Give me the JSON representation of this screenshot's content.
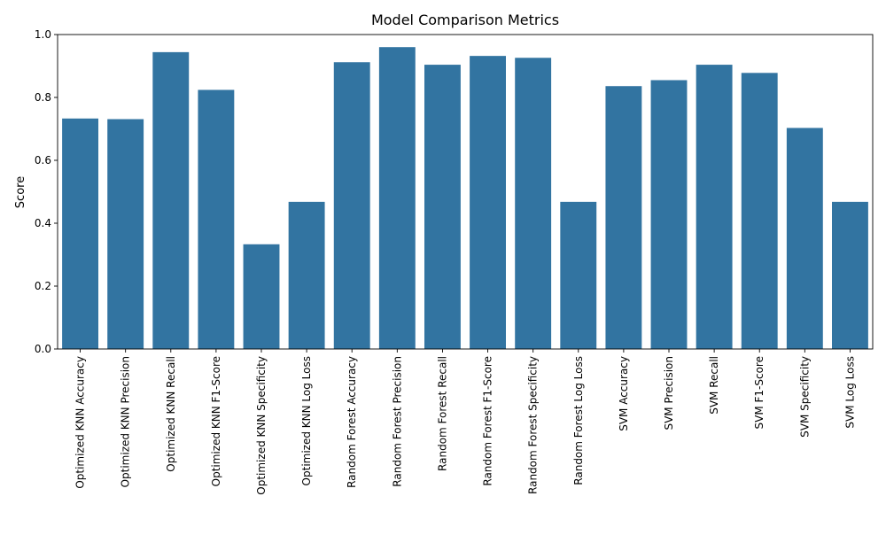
{
  "chart_data": {
    "type": "bar",
    "title": "Model Comparison Metrics",
    "xlabel": "",
    "ylabel": "Score",
    "ylim": [
      0,
      1.0
    ],
    "yticks": [
      0.0,
      0.2,
      0.4,
      0.6,
      0.8,
      1.0
    ],
    "ytick_labels": [
      "0.0",
      "0.2",
      "0.4",
      "0.6",
      "0.8",
      "1.0"
    ],
    "grid": false,
    "bar_color": "#3274a1",
    "categories": [
      "Optimized KNN Accuracy",
      "Optimized KNN Precision",
      "Optimized KNN Recall",
      "Optimized KNN F1-Score",
      "Optimized KNN Specificity",
      "Optimized KNN Log Loss",
      "Random Forest Accuracy",
      "Random Forest Precision",
      "Random Forest Recall",
      "Random Forest F1-Score",
      "Random Forest Specificity",
      "Random Forest Log Loss",
      "SVM Accuracy",
      "SVM Precision",
      "SVM Recall",
      "SVM F1-Score",
      "SVM Specificity",
      "SVM Log Loss"
    ],
    "values": [
      0.733,
      0.731,
      0.944,
      0.824,
      0.333,
      0.468,
      0.912,
      0.96,
      0.904,
      0.932,
      0.926,
      0.468,
      0.836,
      0.855,
      0.904,
      0.878,
      0.703,
      0.468
    ]
  }
}
